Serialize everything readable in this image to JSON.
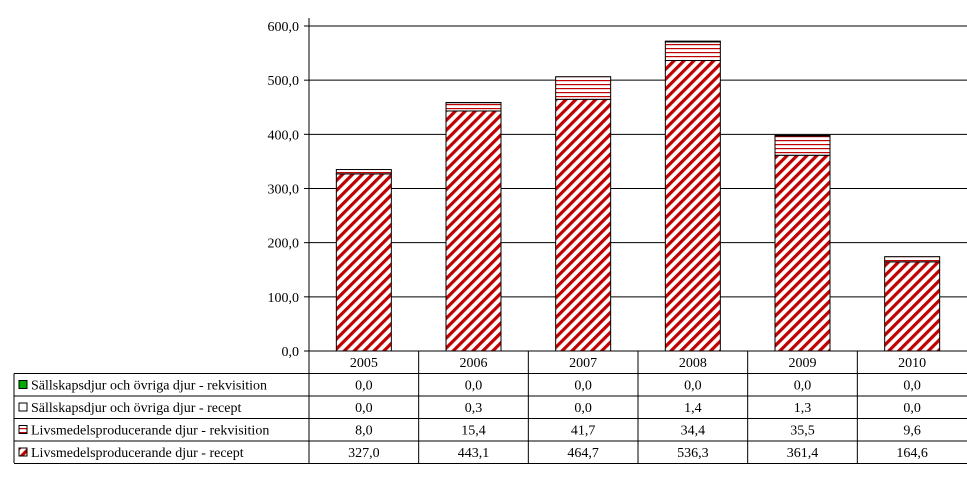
{
  "chart_data": {
    "type": "bar",
    "stacked": true,
    "categories": [
      "2005",
      "2006",
      "2007",
      "2008",
      "2009",
      "2010"
    ],
    "ylim": [
      0,
      600
    ],
    "ytick_labels": [
      "0,0",
      "100,0",
      "200,0",
      "300,0",
      "400,0",
      "500,0",
      "600,0"
    ],
    "grid": true,
    "legend": "data-table-below",
    "series": [
      {
        "name": "Sällskapsdjur och övriga djur - rekvisition",
        "values": [
          0.0,
          0.0,
          0.0,
          0.0,
          0.0,
          0.0
        ],
        "labels": [
          "0,0",
          "0,0",
          "0,0",
          "0,0",
          "0,0",
          "0,0"
        ],
        "color": "#00aa00",
        "pattern": "solid"
      },
      {
        "name": "Sällskapsdjur och övriga djur - recept",
        "values": [
          0.0,
          0.3,
          0.0,
          1.4,
          1.3,
          0.0
        ],
        "labels": [
          "0,0",
          "0,3",
          "0,0",
          "1,4",
          "1,3",
          "0,0"
        ],
        "color": "#000000",
        "pattern": "solid-dark"
      },
      {
        "name": "Livsmedelsproducerande djur - rekvisition",
        "values": [
          8.0,
          15.4,
          41.7,
          34.4,
          35.5,
          9.6
        ],
        "labels": [
          "8,0",
          "15,4",
          "41,7",
          "34,4",
          "35,5",
          "9,6"
        ],
        "color": "#c00000",
        "pattern": "horizontal-lines"
      },
      {
        "name": "Livsmedelsproducerande djur - recept",
        "values": [
          327.0,
          443.1,
          464.7,
          536.3,
          361.4,
          164.6
        ],
        "labels": [
          "327,0",
          "443,1",
          "464,7",
          "536,3",
          "361,4",
          "164,6"
        ],
        "color": "#c00000",
        "pattern": "diagonal-stripes"
      }
    ]
  }
}
